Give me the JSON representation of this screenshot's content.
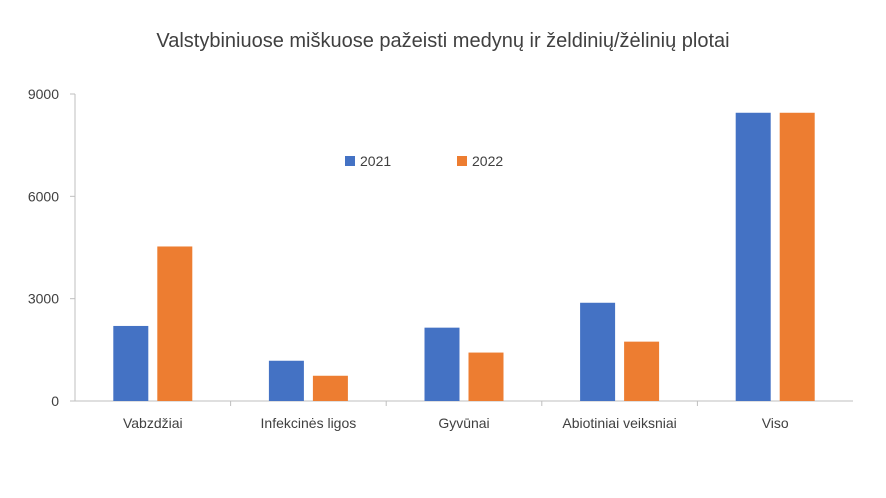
{
  "chart_data": {
    "type": "bar",
    "title": "Valstybiniuose miškuose pažeisti medynų ir želdinių/žėlinių plotai",
    "xlabel": "",
    "ylabel": "",
    "ylim": [
      0,
      9000
    ],
    "yticks": [
      0,
      3000,
      6000,
      9000
    ],
    "categories": [
      "Vabzdžiai",
      "Infekcinės ligos",
      "Gyvūnai",
      "Abiotiniai veiksniai",
      "Viso"
    ],
    "series": [
      {
        "name": "2021",
        "color": "#4472c4",
        "values": [
          2200,
          1180,
          2150,
          2880,
          8450
        ]
      },
      {
        "name": "2022",
        "color": "#ed7d31",
        "values": [
          4530,
          740,
          1420,
          1740,
          8450
        ]
      }
    ],
    "legend_position": "inside-top-center",
    "grid": false
  }
}
